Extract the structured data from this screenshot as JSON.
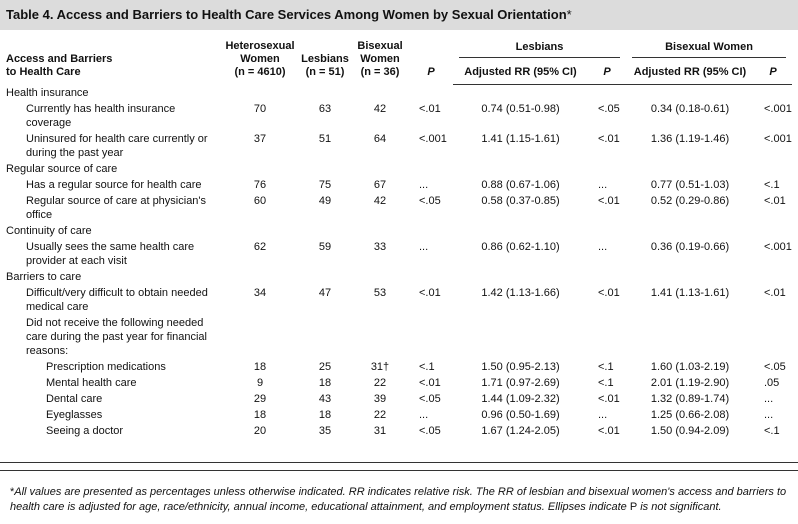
{
  "title": "Table 4. Access and Barriers to Health Care Services Among Women by Sexual Orientation",
  "title_marker": "*",
  "header": {
    "label": [
      "Access and Barriers",
      "to Health Care"
    ],
    "heterosexual": [
      "Heterosexual",
      "Women",
      "(n = 4610)"
    ],
    "lesbians": [
      "Lesbians",
      "(n = 51)"
    ],
    "bisexual": [
      "Bisexual",
      "Women",
      "(n = 36)"
    ],
    "p": "P",
    "groups": [
      {
        "title": "Lesbians",
        "rr": "Adjusted RR (95% CI)",
        "p": "P"
      },
      {
        "title": "Bisexual Women",
        "rr": "Adjusted RR (95% CI)",
        "p": "P"
      }
    ]
  },
  "sections": [
    {
      "title": "Health insurance",
      "rows": [
        {
          "label": "Currently has health insurance coverage",
          "cells": [
            "70",
            "63",
            "42",
            "<.01",
            "0.74 (0.51-0.98)",
            "<.05",
            "0.34 (0.18-0.61)",
            "<.001"
          ]
        },
        {
          "label": "Uninsured for health care currently or during the past year",
          "cells": [
            "37",
            "51",
            "64",
            "<.001",
            "1.41 (1.15-1.61)",
            "<.01",
            "1.36 (1.19-1.46)",
            "<.001"
          ]
        }
      ]
    },
    {
      "title": "Regular source of care",
      "rows": [
        {
          "label": "Has a regular source for health care",
          "cells": [
            "76",
            "75",
            "67",
            "...",
            "0.88 (0.67-1.06)",
            "...",
            "0.77 (0.51-1.03)",
            "<.1"
          ]
        },
        {
          "label": "Regular source of care at physician's office",
          "cells": [
            "60",
            "49",
            "42",
            "<.05",
            "0.58 (0.37-0.85)",
            "<.01",
            "0.52 (0.29-0.86)",
            "<.01"
          ]
        }
      ]
    },
    {
      "title": "Continuity of care",
      "rows": [
        {
          "label": "Usually sees the same health care provider at each visit",
          "cells": [
            "62",
            "59",
            "33",
            "...",
            "0.86 (0.62-1.10)",
            "...",
            "0.36 (0.19-0.66)",
            "<.001"
          ]
        }
      ]
    },
    {
      "title": "Barriers to care",
      "rows": [
        {
          "label": "Difficult/very difficult to obtain needed medical care",
          "cells": [
            "34",
            "47",
            "53",
            "<.01",
            "1.42 (1.13-1.66)",
            "<.01",
            "1.41 (1.13-1.61)",
            "<.01"
          ]
        },
        {
          "label": "Did not receive the following needed care during the past year for financial reasons:",
          "rows": [
            {
              "label": "Prescription medications",
              "cells": [
                "18",
                "25",
                "31†",
                "<.1",
                "1.50 (0.95-2.13)",
                "<.1",
                "1.60 (1.03-2.19)",
                "<.05"
              ]
            },
            {
              "label": "Mental health care",
              "cells": [
                "9",
                "18",
                "22",
                "<.01",
                "1.71 (0.97-2.69)",
                "<.1",
                "2.01 (1.19-2.90)",
                ".05"
              ]
            },
            {
              "label": "Dental care",
              "cells": [
                "29",
                "43",
                "39",
                "<.05",
                "1.44 (1.09-2.32)",
                "<.01",
                "1.32 (0.89-1.74)",
                "..."
              ]
            },
            {
              "label": "Eyeglasses",
              "cells": [
                "18",
                "18",
                "22",
                "...",
                "0.96 (0.50-1.69)",
                "...",
                "1.25 (0.66-2.08)",
                "..."
              ]
            },
            {
              "label": "Seeing a doctor",
              "cells": [
                "20",
                "35",
                "31",
                "<.05",
                "1.67 (1.24-2.05)",
                "<.01",
                "1.50 (0.94-2.09)",
                "<.1"
              ]
            }
          ]
        }
      ]
    }
  ],
  "footnote": {
    "marker": "*",
    "text": "All values are presented as percentages unless otherwise indicated. RR indicates relative risk. The RR of lesbian and bisexual women's access and barriers to health care is adjusted for age, race/ethnicity, annual income, educational attainment, and employment status. Ellipses indicate",
    "p": "P",
    "end": "is not significant."
  }
}
